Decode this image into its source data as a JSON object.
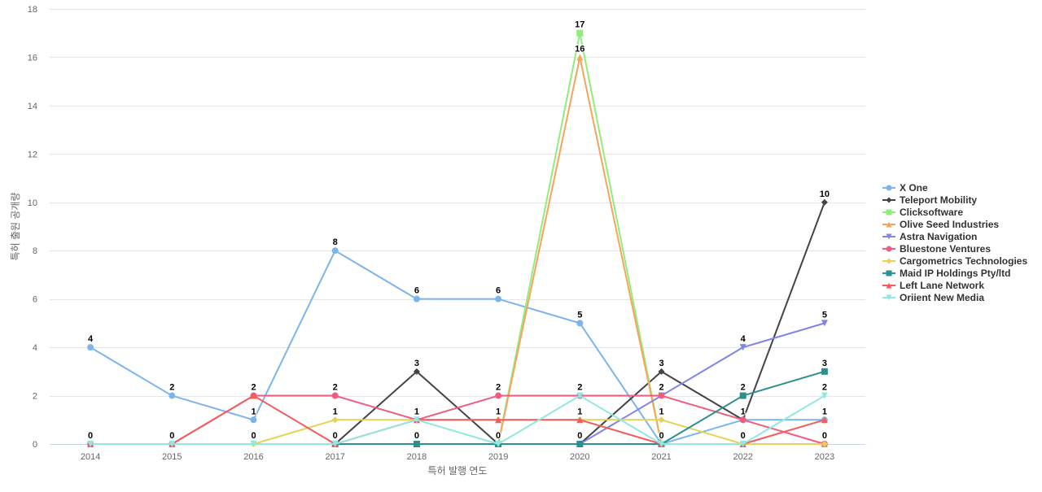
{
  "chart_data": {
    "type": "line",
    "title": "",
    "xlabel": "특허 발행 연도",
    "ylabel": "특허 출원 공개량",
    "ylim": [
      0,
      18
    ],
    "yticks": [
      0,
      2,
      4,
      6,
      8,
      10,
      12,
      14,
      16,
      18
    ],
    "categories": [
      "2014",
      "2015",
      "2016",
      "2017",
      "2018",
      "2019",
      "2020",
      "2021",
      "2022",
      "2023"
    ],
    "grid": true,
    "legend_position": "right",
    "series": [
      {
        "name": "X One",
        "color": "#7cb5ec",
        "marker": "circle",
        "values": [
          4,
          2,
          1,
          8,
          6,
          6,
          5,
          0,
          1,
          1
        ]
      },
      {
        "name": "Teleport Mobility",
        "color": "#434348",
        "marker": "diamond",
        "values": [
          null,
          null,
          null,
          0,
          3,
          0,
          0,
          3,
          1,
          10
        ]
      },
      {
        "name": "Clicksoftware",
        "color": "#90ed7d",
        "marker": "square",
        "values": [
          null,
          null,
          null,
          null,
          null,
          0,
          17,
          0,
          null,
          null
        ]
      },
      {
        "name": "Olive Seed Industries",
        "color": "#f7a35c",
        "marker": "triangle",
        "values": [
          null,
          null,
          null,
          null,
          null,
          0,
          16,
          0,
          0,
          0
        ]
      },
      {
        "name": "Astra Navigation",
        "color": "#8085e9",
        "marker": "triangle-down",
        "values": [
          null,
          null,
          null,
          null,
          null,
          null,
          0,
          2,
          4,
          5
        ]
      },
      {
        "name": "Bluestone Ventures",
        "color": "#f15c80",
        "marker": "circle",
        "values": [
          0,
          0,
          2,
          2,
          1,
          2,
          2,
          2,
          1,
          0
        ]
      },
      {
        "name": "Cargometrics Technologies",
        "color": "#e4d354",
        "marker": "diamond",
        "values": [
          null,
          null,
          0,
          1,
          1,
          1,
          1,
          1,
          0,
          0
        ]
      },
      {
        "name": "Maid IP Holdings Pty/ltd",
        "color": "#2b908f",
        "marker": "square",
        "values": [
          null,
          null,
          null,
          0,
          0,
          0,
          0,
          0,
          2,
          3
        ]
      },
      {
        "name": "Left Lane Network",
        "color": "#f45b5b",
        "marker": "triangle",
        "values": [
          0,
          0,
          2,
          0,
          1,
          1,
          1,
          0,
          0,
          1
        ]
      },
      {
        "name": "Oriient New Media",
        "color": "#91e8e1",
        "marker": "triangle-down",
        "values": [
          0,
          0,
          0,
          0,
          1,
          0,
          2,
          0,
          0,
          2
        ]
      }
    ],
    "data_labels": [
      {
        "category": "2014",
        "labels": [
          "4",
          "0"
        ]
      },
      {
        "category": "2015",
        "labels": [
          "2",
          "0"
        ]
      },
      {
        "category": "2016",
        "labels": [
          "2",
          "1",
          "0"
        ]
      },
      {
        "category": "2017",
        "labels": [
          "8",
          "2",
          "1",
          "0"
        ]
      },
      {
        "category": "2018",
        "labels": [
          "6",
          "3",
          "1",
          "0"
        ]
      },
      {
        "category": "2019",
        "labels": [
          "6",
          "2",
          "1",
          "0"
        ]
      },
      {
        "category": "2020",
        "labels": [
          "17",
          "16",
          "5",
          "2",
          "1",
          "0"
        ]
      },
      {
        "category": "2021",
        "labels": [
          "3",
          "2",
          "1",
          "0"
        ]
      },
      {
        "category": "2022",
        "labels": [
          "4",
          "2",
          "1",
          "0"
        ]
      },
      {
        "category": "2023",
        "labels": [
          "10",
          "5",
          "3",
          "2",
          "1",
          "0"
        ]
      }
    ]
  }
}
